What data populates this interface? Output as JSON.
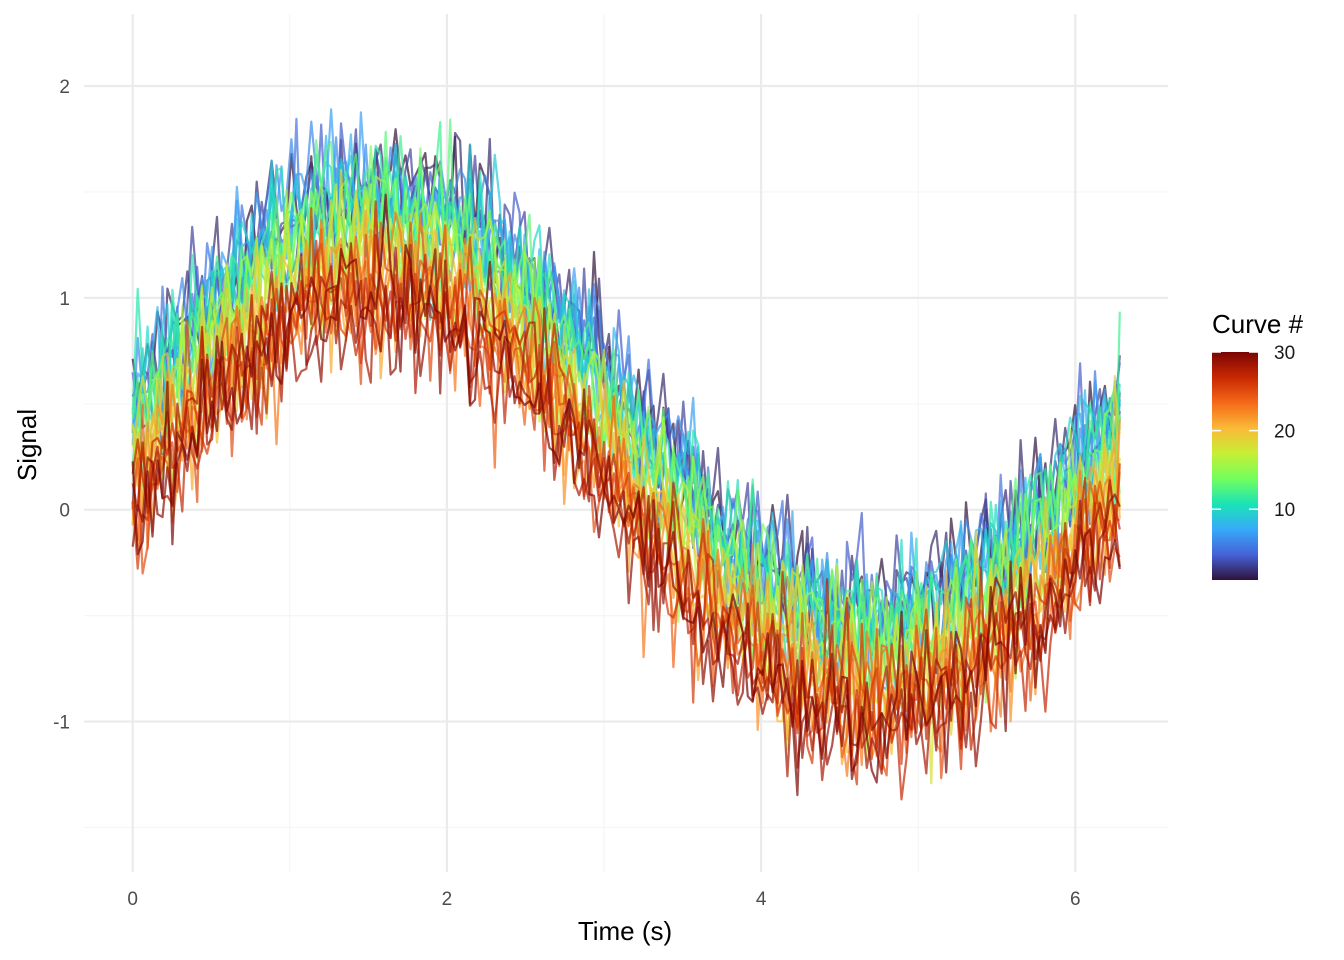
{
  "chart_data": {
    "type": "line",
    "title": "",
    "xlabel": "Time (s)",
    "ylabel": "Signal",
    "xlim": [
      -0.31,
      6.59
    ],
    "ylim": [
      -1.71,
      2.34
    ],
    "x_ticks": [
      0,
      2,
      4,
      6
    ],
    "x_tick_labels": [
      "0",
      "2",
      "4",
      "6"
    ],
    "y_ticks": [
      -1,
      0,
      1,
      2
    ],
    "y_tick_labels": [
      "-1",
      "0",
      "1",
      "2"
    ],
    "grid": true,
    "x_range": [
      0,
      6.283
    ],
    "points_per_curve": 200,
    "n_curves": 30,
    "model": "y = sin(x) + offset + noise",
    "curve_offsets": [
      0.55,
      0.52,
      0.5,
      0.52,
      0.48,
      0.5,
      0.5,
      0.48,
      0.46,
      0.45,
      0.45,
      0.42,
      0.4,
      0.38,
      0.35,
      0.3,
      0.25,
      0.22,
      0.2,
      0.15,
      0.12,
      0.1,
      0.08,
      0.06,
      0.05,
      0.04,
      0.02,
      0.0,
      -0.02,
      -0.04
    ],
    "noise_sd": 0.17,
    "line_opacity": 0.7,
    "legend": {
      "title": "Curve #",
      "placement": "right",
      "type": "colorbar",
      "range": [
        1,
        30
      ],
      "ticks": [
        10,
        20,
        30
      ],
      "tick_labels": [
        "10",
        "20",
        "30"
      ],
      "palette": "turbo"
    }
  },
  "colors": {
    "grid_major": "#ebebeb",
    "grid_minor": "#f5f5f5",
    "turbo_stops": [
      "#30123b",
      "#4662d7",
      "#36aaf9",
      "#1ae4b6",
      "#72fe5e",
      "#c7ef34",
      "#fbb938",
      "#f56918",
      "#c82803",
      "#7a0403"
    ]
  }
}
